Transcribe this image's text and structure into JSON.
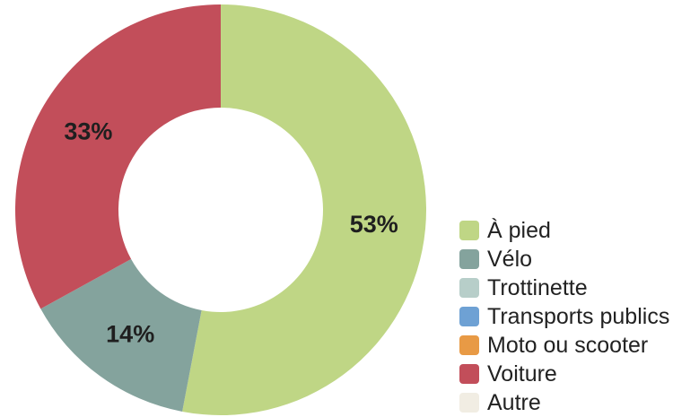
{
  "chart_data": {
    "type": "pie",
    "variant": "donut",
    "title": "",
    "categories": [
      "À pied",
      "Vélo",
      "Trottinette",
      "Transports publics",
      "Moto ou scooter",
      "Voiture",
      "Autre"
    ],
    "values": [
      53,
      14,
      0,
      0,
      0,
      33,
      0
    ],
    "value_labels": [
      "53%",
      "14%",
      "",
      "",
      "",
      "33%",
      ""
    ],
    "colors": [
      "#bfd685",
      "#84a39d",
      "#b7cec9",
      "#6ea1d4",
      "#e89a45",
      "#c24e5a",
      "#f1ede3"
    ],
    "legend_position": "right-bottom"
  }
}
